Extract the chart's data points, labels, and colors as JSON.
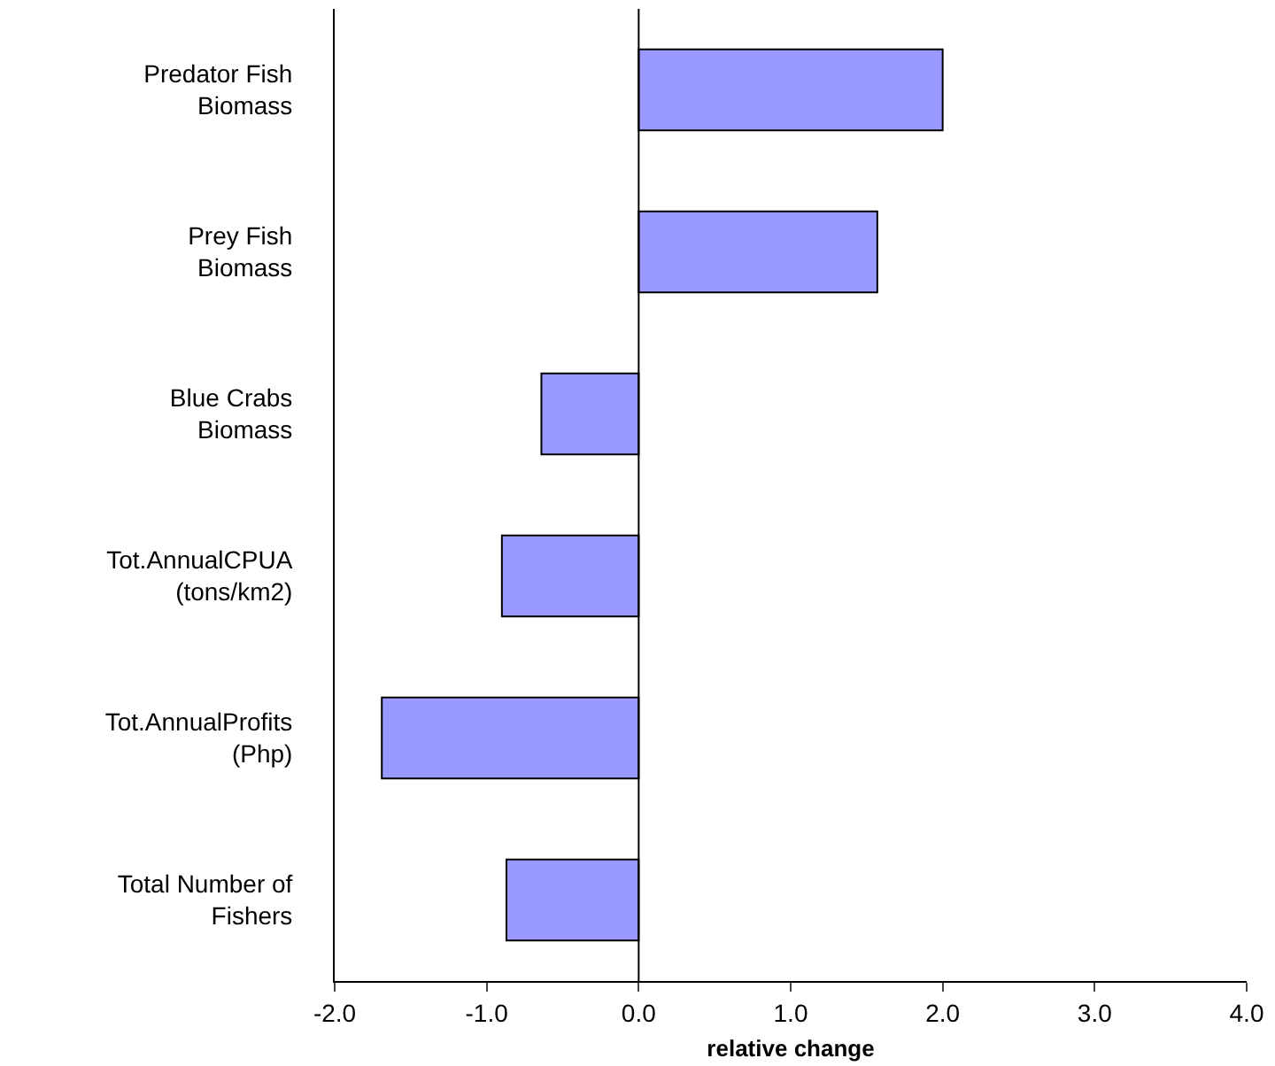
{
  "chart_data": {
    "type": "bar",
    "orientation": "horizontal",
    "xlabel": "relative change",
    "categories": [
      "Predator Fish\nBiomass",
      "Prey Fish\nBiomass",
      "Blue Crabs\nBiomass",
      "Tot.AnnualCPUA\n(tons/km2)",
      "Tot.AnnualProfits\n(Php)",
      "Total Number of\nFishers"
    ],
    "values": [
      2.0,
      1.57,
      -0.64,
      -0.9,
      -1.69,
      -0.87
    ],
    "color": "#9999ff",
    "xlim": [
      -2,
      4
    ],
    "xticks": [
      {
        "value": -2,
        "label": "-2.0"
      },
      {
        "value": -1,
        "label": "-1.0"
      },
      {
        "value": 0,
        "label": "0.0"
      },
      {
        "value": 1,
        "label": "1.0"
      },
      {
        "value": 2,
        "label": "2.0"
      },
      {
        "value": 3,
        "label": "3.0"
      },
      {
        "value": 4,
        "label": "4.0"
      }
    ],
    "ref_lines": [
      {
        "axis": "x",
        "value": 0,
        "color": "#000000"
      }
    ],
    "grid": false,
    "legend": false
  }
}
